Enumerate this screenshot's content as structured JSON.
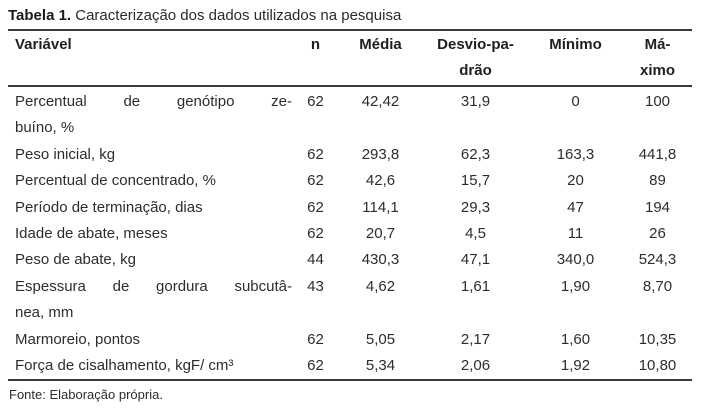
{
  "title": {
    "label_bold": "Tabela 1.",
    "label_rest": " Caracterização dos dados utilizados na pesquisa"
  },
  "table": {
    "headers": {
      "variavel": "Variável",
      "n": "n",
      "media": "Média",
      "desvio_line1": "Desvio-pa-",
      "desvio_line2": "drão",
      "minimo": "Mínimo",
      "maximo_line1": "Má-",
      "maximo_line2": "ximo"
    },
    "rows": [
      {
        "variavel_lines": [
          "Percentual de genótipo ze-",
          "buíno, %"
        ],
        "justify_first_line": true,
        "n": "62",
        "media": "42,42",
        "desvio": "31,9",
        "minimo": "0",
        "maximo": "100"
      },
      {
        "variavel_lines": [
          "Peso inicial, kg"
        ],
        "justify_first_line": false,
        "n": "62",
        "media": "293,8",
        "desvio": "62,3",
        "minimo": "163,3",
        "maximo": "441,8"
      },
      {
        "variavel_lines": [
          "Percentual de concentrado, %"
        ],
        "justify_first_line": false,
        "n": "62",
        "media": "42,6",
        "desvio": "15,7",
        "minimo": "20",
        "maximo": "89"
      },
      {
        "variavel_lines": [
          "Período de terminação, dias"
        ],
        "justify_first_line": false,
        "n": "62",
        "media": "114,1",
        "desvio": "29,3",
        "minimo": "47",
        "maximo": "194"
      },
      {
        "variavel_lines": [
          "Idade de abate, meses"
        ],
        "justify_first_line": false,
        "n": "62",
        "media": "20,7",
        "desvio": "4,5",
        "minimo": "11",
        "maximo": "26"
      },
      {
        "variavel_lines": [
          "Peso de abate, kg"
        ],
        "justify_first_line": false,
        "n": "44",
        "media": "430,3",
        "desvio": "47,1",
        "minimo": "340,0",
        "maximo": "524,3"
      },
      {
        "variavel_lines": [
          "Espessura de gordura subcutâ-",
          "nea, mm"
        ],
        "justify_first_line": true,
        "n": "43",
        "media": "4,62",
        "desvio": "1,61",
        "minimo": "1,90",
        "maximo": "8,70"
      },
      {
        "variavel_lines": [
          "Marmoreio, pontos"
        ],
        "justify_first_line": false,
        "n": "62",
        "media": "5,05",
        "desvio": "2,17",
        "minimo": "1,60",
        "maximo": "10,35"
      },
      {
        "variavel_lines": [
          "Força de cisalhamento, kgF/ cm³"
        ],
        "justify_first_line": false,
        "n": "62",
        "media": "5,34",
        "desvio": "2,06",
        "minimo": "1,92",
        "maximo": "10,80"
      }
    ]
  },
  "footer": {
    "source": "Fonte: Elaboração própria."
  }
}
